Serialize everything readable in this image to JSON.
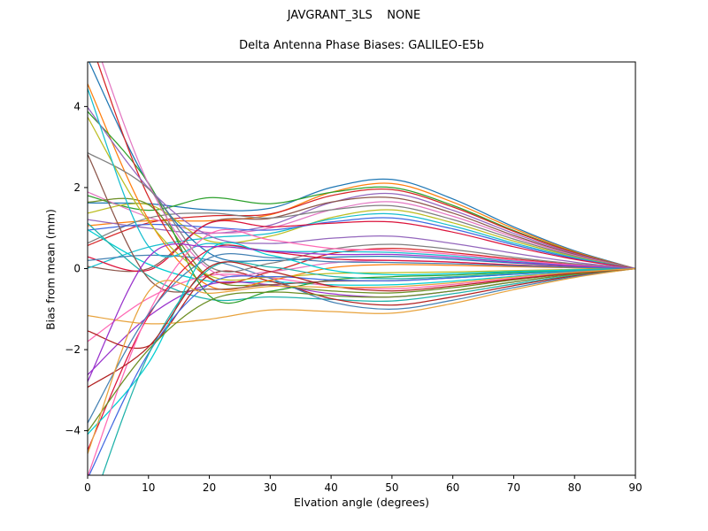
{
  "figure": {
    "suptitle": "JAVGRANT_3LS    NONE",
    "title": "Delta Antenna Phase Biases: GALILEO-E5b",
    "xlabel": "Elvation angle (degrees)",
    "ylabel": "Bias from mean (mm)"
  },
  "chart_data": {
    "type": "line",
    "suptitle": "JAVGRANT_3LS    NONE",
    "title": "Delta Antenna Phase Biases: GALILEO-E5b",
    "xlabel": "Elvation angle (degrees)",
    "ylabel": "Bias from mean (mm)",
    "xlim": [
      0,
      90
    ],
    "ylim": [
      -5.1,
      5.1
    ],
    "xticks": [
      0,
      10,
      20,
      30,
      40,
      50,
      60,
      70,
      80,
      90
    ],
    "xtick_labels": [
      "0",
      "10",
      "20",
      "30",
      "40",
      "50",
      "60",
      "70",
      "80",
      "90"
    ],
    "yticks": [
      -4,
      -2,
      0,
      2,
      4
    ],
    "ytick_labels": [
      "−4",
      "−2",
      "0",
      "2",
      "4"
    ],
    "grid": false,
    "legend": "none",
    "axes_facecolor": "#ffffff",
    "spine_color": "#000000",
    "palette": [
      "#1f77b4",
      "#ff7f0e",
      "#2ca02c",
      "#d62728",
      "#9467bd",
      "#8c564b",
      "#e377c2",
      "#7f7f7f",
      "#bcbd22",
      "#17becf",
      "#4169e1",
      "#dc143c",
      "#00ced1",
      "#ff69b4",
      "#6b8e23",
      "#9932cc",
      "#20b2aa",
      "#b22222",
      "#4682b4",
      "#e8a33d"
    ],
    "x": [
      0,
      10,
      20,
      30,
      40,
      50,
      60,
      70,
      80,
      90
    ],
    "series": [
      {
        "values": [
          1.62,
          1.6,
          1.45,
          1.49,
          2.0,
          2.2,
          1.72,
          1.03,
          0.44,
          0
        ]
      },
      {
        "values": [
          1.06,
          1.18,
          1.18,
          1.33,
          1.88,
          2.1,
          1.64,
          0.99,
          0.42,
          0
        ]
      },
      {
        "values": [
          1.8,
          1.44,
          1.75,
          1.6,
          1.88,
          2.0,
          1.56,
          0.94,
          0.4,
          0
        ]
      },
      {
        "values": [
          0.57,
          1.13,
          1.3,
          1.35,
          1.8,
          1.95,
          1.52,
          0.92,
          0.39,
          0
        ]
      },
      {
        "values": [
          1.21,
          1.0,
          0.87,
          1.07,
          1.63,
          1.85,
          1.44,
          0.87,
          0.37,
          0
        ]
      },
      {
        "values": [
          0.05,
          0.0,
          1.13,
          1.24,
          1.64,
          1.75,
          1.37,
          0.82,
          0.35,
          0
        ]
      },
      {
        "values": [
          1.89,
          1.27,
          0.89,
          1.0,
          1.45,
          1.65,
          1.29,
          0.78,
          0.33,
          0
        ]
      },
      {
        "values": [
          0.63,
          1.25,
          1.37,
          1.25,
          1.45,
          1.55,
          1.21,
          0.73,
          0.31,
          0
        ]
      },
      {
        "values": [
          1.37,
          1.58,
          0.68,
          0.8,
          1.26,
          1.45,
          1.13,
          0.68,
          0.29,
          0
        ]
      },
      {
        "values": [
          0.01,
          0.53,
          0.76,
          0.87,
          1.22,
          1.35,
          1.05,
          0.63,
          0.27,
          0
        ]
      },
      {
        "values": [
          0.95,
          1.09,
          1.02,
          0.95,
          1.15,
          1.25,
          0.98,
          0.59,
          0.25,
          0
        ]
      },
      {
        "values": [
          0.29,
          -0.04,
          1.12,
          1.03,
          1.12,
          1.15,
          0.9,
          0.54,
          0.23,
          0
        ]
      },
      {
        "values": [
          0.96,
          0.11,
          -0.31,
          -0.32,
          -0.4,
          -0.4,
          -0.31,
          -0.19,
          -0.08,
          0
        ]
      },
      {
        "values": [
          -1.8,
          -0.73,
          -0.17,
          -0.23,
          -0.43,
          -0.5,
          -0.39,
          -0.24,
          -0.1,
          0
        ]
      },
      {
        "values": [
          1.64,
          1.58,
          -0.22,
          -0.41,
          -0.55,
          -0.6,
          -0.47,
          -0.28,
          -0.12,
          0
        ]
      },
      {
        "values": [
          -2.62,
          -1.18,
          -0.39,
          -0.4,
          -0.62,
          -0.7,
          -0.55,
          -0.33,
          -0.14,
          0
        ]
      },
      {
        "values": [
          1.12,
          -0.18,
          -0.76,
          -0.7,
          -0.76,
          -0.8,
          -0.62,
          -0.38,
          -0.16,
          0
        ]
      },
      {
        "values": [
          -1.54,
          -1.91,
          -0.16,
          -0.31,
          -0.74,
          -0.9,
          -0.7,
          -0.42,
          -0.18,
          0
        ]
      },
      {
        "values": [
          0.2,
          0.33,
          0.21,
          -0.24,
          -0.82,
          -1.0,
          -0.78,
          -0.47,
          -0.2,
          0
        ]
      },
      {
        "values": [
          -1.16,
          -1.36,
          -1.25,
          -1.02,
          -1.06,
          -1.1,
          -0.86,
          -0.52,
          -0.22,
          0
        ]
      },
      {
        "values": [
          5.18,
          2.09,
          0.38,
          0.2,
          0.28,
          0.3,
          0.23,
          0.14,
          0.06,
          0
        ]
      },
      {
        "values": [
          4.56,
          1.21,
          -0.43,
          -0.29,
          0.02,
          0.1,
          0.08,
          0.05,
          0.02,
          0
        ]
      },
      {
        "values": [
          3.88,
          2.11,
          -0.67,
          -0.56,
          -0.28,
          -0.2,
          -0.16,
          -0.09,
          -0.04,
          0
        ]
      },
      {
        "values": [
          5.8,
          1.77,
          -0.24,
          -0.08,
          0.37,
          0.5,
          0.39,
          0.24,
          0.1,
          0
        ]
      },
      {
        "values": [
          3.98,
          1.99,
          0.81,
          0.62,
          0.75,
          0.8,
          0.62,
          0.38,
          0.16,
          0
        ]
      },
      {
        "values": [
          2.82,
          -0.25,
          -0.51,
          -0.4,
          -0.31,
          -0.3,
          -0.23,
          -0.14,
          -0.06,
          0
        ]
      },
      {
        "values": [
          6.12,
          2.09,
          -0.02,
          -0.07,
          0.14,
          0.2,
          0.16,
          0.09,
          0.04,
          0
        ]
      },
      {
        "values": [
          2.86,
          1.97,
          0.05,
          0.13,
          0.48,
          0.6,
          0.47,
          0.28,
          0.12,
          0
        ]
      },
      {
        "values": [
          3.74,
          1.16,
          -0.17,
          -0.21,
          -0.12,
          -0.1,
          -0.08,
          -0.05,
          -0.02,
          0
        ]
      },
      {
        "values": [
          4.44,
          0.55,
          0.62,
          0.44,
          0.42,
          0.4,
          0.31,
          0.19,
          0.08,
          0
        ]
      },
      {
        "values": [
          -5.18,
          -2.09,
          -0.38,
          -0.2,
          -0.28,
          -0.3,
          -0.23,
          -0.14,
          -0.06,
          0
        ]
      },
      {
        "values": [
          -4.48,
          -1.17,
          0.47,
          0.41,
          0.24,
          0.2,
          0.16,
          0.09,
          0.04,
          0
        ]
      },
      {
        "values": [
          -4.09,
          -2.33,
          0.46,
          0.33,
          -0.04,
          -0.15,
          -0.12,
          -0.07,
          -0.03,
          0
        ]
      },
      {
        "values": [
          -5.13,
          -1.1,
          0.85,
          0.71,
          0.5,
          0.45,
          0.35,
          0.21,
          0.09,
          0
        ]
      },
      {
        "values": [
          -4.02,
          -2.0,
          -0.79,
          -0.58,
          -0.67,
          -0.7,
          -0.55,
          -0.33,
          -0.14,
          0
        ]
      },
      {
        "values": [
          -2.79,
          0.28,
          0.54,
          0.43,
          0.35,
          0.35,
          0.27,
          0.16,
          0.07,
          0
        ]
      },
      {
        "values": [
          -6.15,
          -2.12,
          -0.01,
          0.04,
          -0.19,
          -0.25,
          -0.2,
          -0.12,
          -0.05,
          0
        ]
      },
      {
        "values": [
          -2.93,
          -1.93,
          0.04,
          -0.07,
          -0.43,
          -0.55,
          -0.43,
          -0.26,
          -0.11,
          0
        ]
      },
      {
        "values": [
          -3.81,
          -1.12,
          0.26,
          0.27,
          0.17,
          0.15,
          0.12,
          0.07,
          0.03,
          0
        ]
      },
      {
        "values": [
          -4.57,
          -0.57,
          -0.61,
          -0.44,
          -0.46,
          -0.45,
          -0.35,
          -0.21,
          -0.09,
          0
        ]
      }
    ]
  }
}
